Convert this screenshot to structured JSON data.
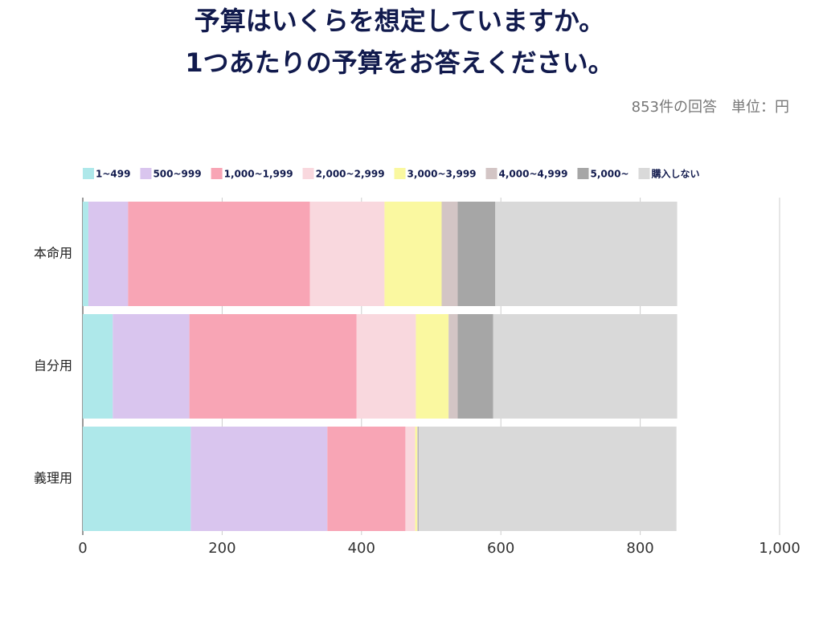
{
  "chart_data": {
    "type": "stacked-barh",
    "title": [
      "予算はいくらを想定していますか。",
      "1つあたりの予算をお答えください。"
    ],
    "subtitle": "853件の回答　単位：円",
    "categories": [
      "本命用",
      "自分用",
      "義理用"
    ],
    "series": [
      {
        "name": "1~499",
        "color": "#aee8ea",
        "values": [
          8,
          43,
          155
        ]
      },
      {
        "name": "500~999",
        "color": "#d9c5ee",
        "values": [
          57,
          110,
          196
        ]
      },
      {
        "name": "1,000~1,999",
        "color": "#f8a5b5",
        "values": [
          261,
          240,
          112
        ]
      },
      {
        "name": "2,000~2,999",
        "color": "#f9d8de",
        "values": [
          107,
          85,
          14
        ]
      },
      {
        "name": "3,000~3,999",
        "color": "#faf8a0",
        "values": [
          82,
          47,
          3
        ]
      },
      {
        "name": "4,000~4,999",
        "color": "#d3c5c5",
        "values": [
          23,
          13,
          1
        ]
      },
      {
        "name": "5,000~",
        "color": "#a6a6a6",
        "values": [
          54,
          51,
          1
        ]
      },
      {
        "name": "購入しない",
        "color": "#d9d9d9",
        "values": [
          261,
          264,
          370
        ]
      }
    ],
    "xlim": [
      0,
      1000
    ],
    "xticks": [
      0,
      200,
      400,
      600,
      800,
      {
        "value": 1000,
        "label": "1,000"
      }
    ],
    "grid": true
  }
}
